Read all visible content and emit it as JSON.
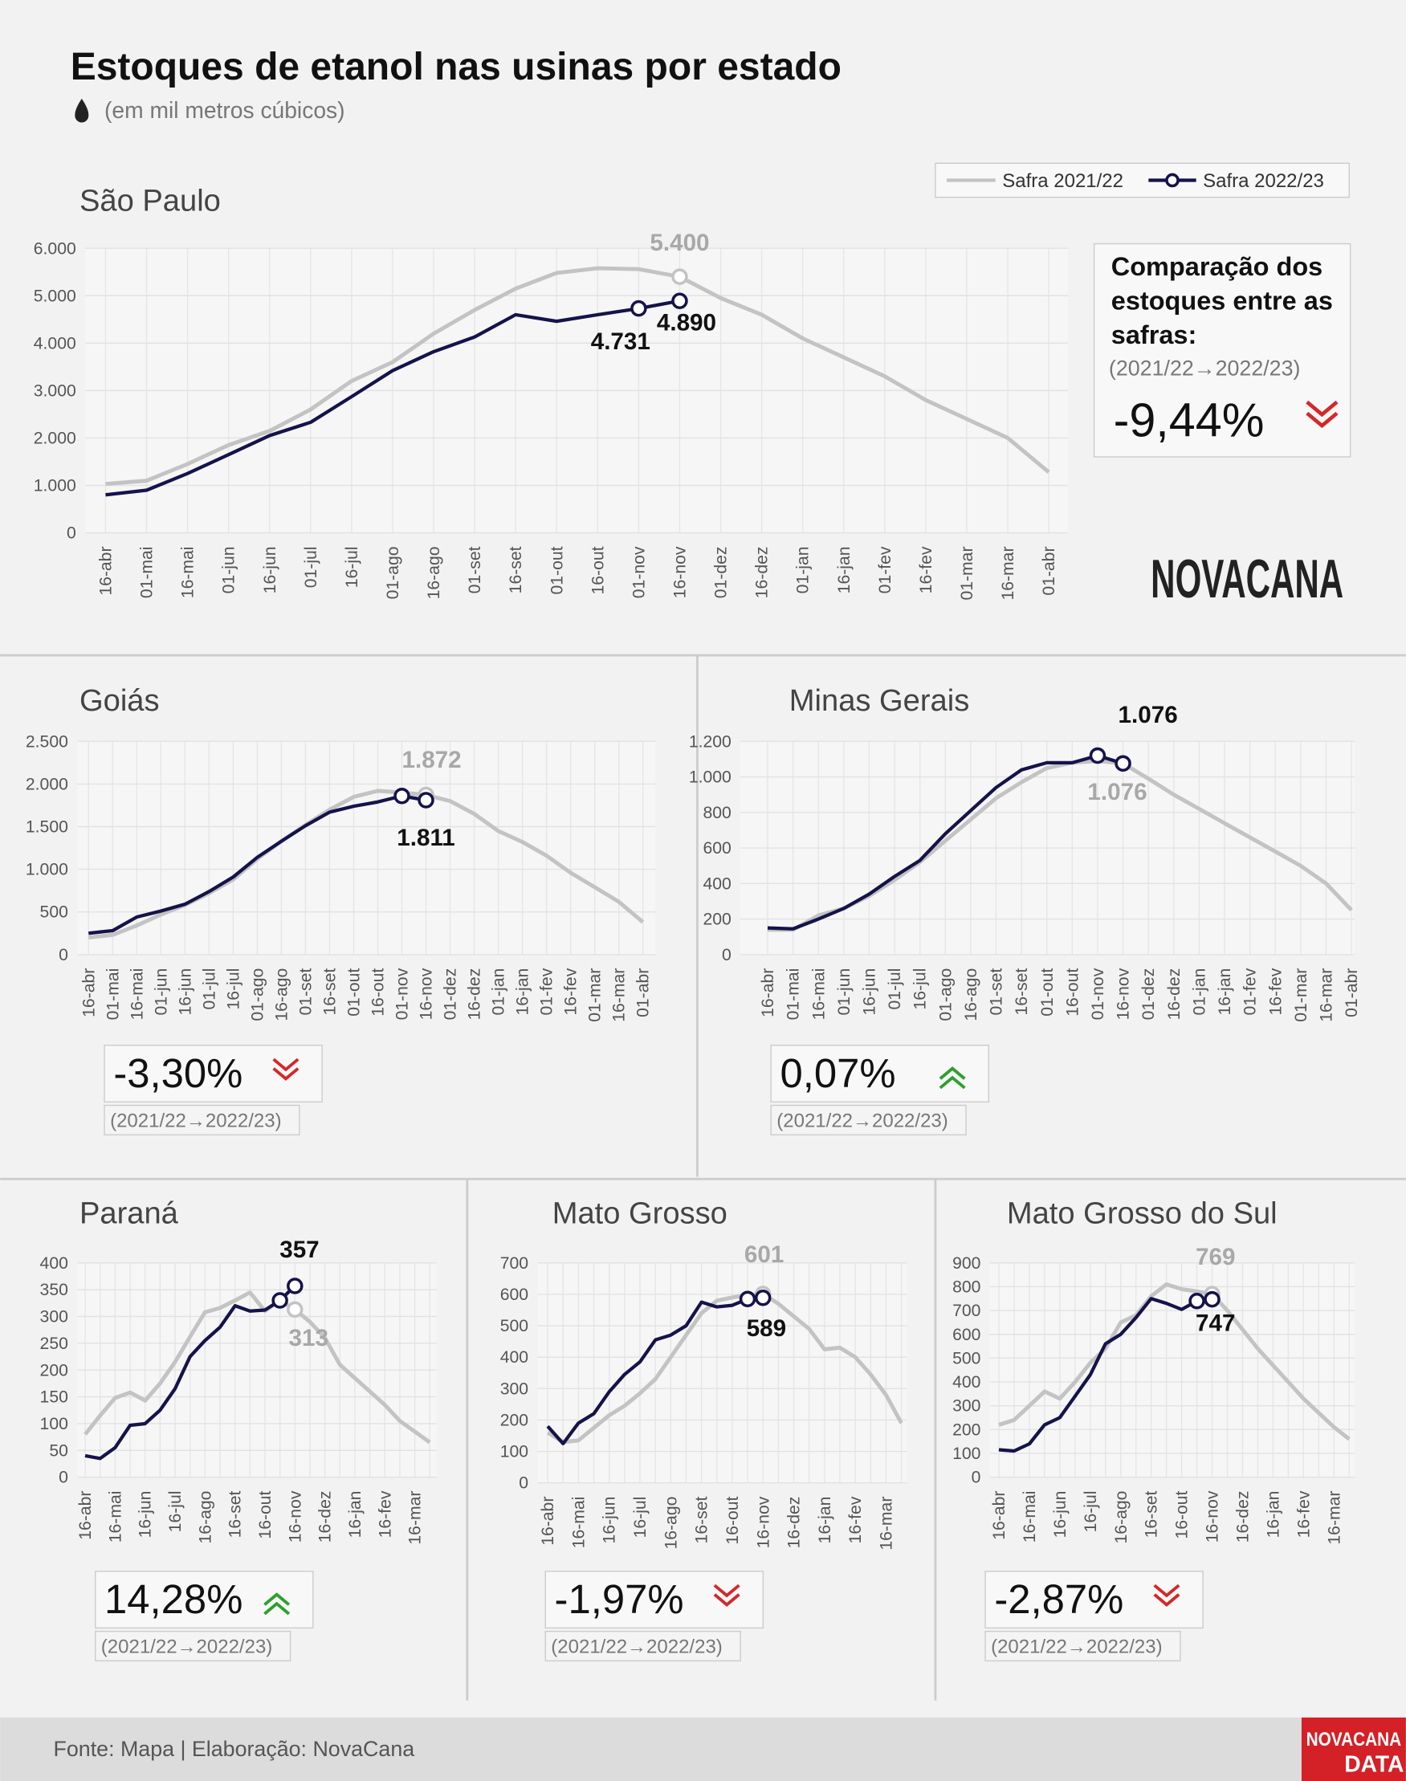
{
  "header": {
    "title": "Estoques de etanol nas usinas por estado",
    "subtitle": "(em mil metros cúbicos)"
  },
  "comparison_title": "Comparação dos estoques entre as safras:",
  "period_label": "(2021/22→2022/23)",
  "footer": {
    "source": "Fonte: Mapa | Elaboração: NovaCana",
    "logo": "NOVACANA",
    "data_logo": [
      "NOVACANA",
      "DATA"
    ]
  },
  "chart_data": [
    {
      "type": "line",
      "title": "São Paulo",
      "comparison": "-9,44%",
      "trend": "down",
      "categories": [
        "16-abr",
        "01-mai",
        "16-mai",
        "01-jun",
        "16-jun",
        "01-jul",
        "16-jul",
        "01-ago",
        "16-ago",
        "01-set",
        "16-set",
        "01-out",
        "16-out",
        "01-nov",
        "16-nov",
        "01-dez",
        "16-dez",
        "01-jan",
        "16-jan",
        "01-fev",
        "16-fev",
        "01-mar",
        "16-mar",
        "01-abr"
      ],
      "ylim": [
        0,
        6000
      ],
      "yticks": [
        0,
        {
          "value": 1000,
          "label": "1.000"
        },
        {
          "value": 2000,
          "label": "2.000"
        },
        {
          "value": 3000,
          "label": "3.000"
        },
        {
          "value": 4000,
          "label": "4.000"
        },
        {
          "value": 5000,
          "label": "5.000"
        },
        {
          "value": 6000,
          "label": "6.000"
        }
      ],
      "series": [
        {
          "name": "Safra 2021/22",
          "color": "#c3c3c3",
          "values": [
            1030,
            1100,
            1450,
            1850,
            2150,
            2600,
            3200,
            3600,
            4200,
            4700,
            5150,
            5480,
            5580,
            5560,
            5400,
            4950,
            4600,
            4100,
            3700,
            3300,
            2800,
            2400,
            2000,
            1280
          ],
          "value_labels": [
            null,
            null,
            null,
            null,
            null,
            null,
            null,
            null,
            null,
            null,
            null,
            null,
            null,
            null,
            "5.400",
            null,
            null,
            null,
            null,
            null,
            null,
            null,
            null,
            null
          ]
        },
        {
          "name": "Safra 2022/23",
          "color": "#14134a",
          "values": [
            800,
            900,
            1250,
            1650,
            2050,
            2330,
            2870,
            3420,
            3820,
            4130,
            4600,
            4460,
            4600,
            4731,
            4890,
            null,
            null,
            null,
            null,
            null,
            null,
            null,
            null,
            null
          ],
          "value_labels": [
            null,
            null,
            null,
            null,
            null,
            null,
            null,
            null,
            null,
            null,
            null,
            null,
            null,
            "4.731",
            "4.890",
            null,
            null,
            null,
            null,
            null,
            null,
            null,
            null,
            null
          ]
        }
      ]
    },
    {
      "type": "line",
      "title": "Goiás",
      "comparison": "-3,30%",
      "trend": "down",
      "categories": [
        "16-abr",
        "01-mai",
        "16-mai",
        "01-jun",
        "16-jun",
        "01-jul",
        "16-jul",
        "01-ago",
        "16-ago",
        "01-set",
        "16-set",
        "01-out",
        "16-out",
        "01-nov",
        "16-nov",
        "01-dez",
        "16-dez",
        "01-jan",
        "16-jan",
        "01-fev",
        "16-fev",
        "01-mar",
        "16-mar",
        "01-abr"
      ],
      "ylim": [
        0,
        2500
      ],
      "yticks": [
        0,
        500,
        {
          "value": 1000,
          "label": "1.000"
        },
        {
          "value": 1500,
          "label": "1.500"
        },
        {
          "value": 2000,
          "label": "2.000"
        },
        {
          "value": 2500,
          "label": "2.500"
        }
      ],
      "series": [
        {
          "name": "Safra 2021/22",
          "color": "#c3c3c3",
          "values": [
            200,
            230,
            340,
            470,
            580,
            720,
            880,
            1120,
            1330,
            1520,
            1700,
            1850,
            1920,
            1900,
            1872,
            1800,
            1650,
            1450,
            1320,
            1160,
            960,
            790,
            620,
            380
          ],
          "value_labels": [
            null,
            null,
            null,
            null,
            null,
            null,
            null,
            null,
            null,
            null,
            null,
            null,
            null,
            null,
            "1.872",
            null,
            null,
            null,
            null,
            null,
            null,
            null,
            null,
            null
          ]
        },
        {
          "name": "Safra 2022/23",
          "color": "#14134a",
          "values": [
            250,
            280,
            440,
            510,
            590,
            740,
            910,
            1140,
            1330,
            1510,
            1670,
            1740,
            1790,
            1860,
            1811,
            null,
            null,
            null,
            null,
            null,
            null,
            null,
            null,
            null
          ],
          "value_labels": [
            null,
            null,
            null,
            null,
            null,
            null,
            null,
            null,
            null,
            null,
            null,
            null,
            null,
            null,
            "1.811",
            null,
            null,
            null,
            null,
            null,
            null,
            null,
            null,
            null
          ]
        }
      ]
    },
    {
      "type": "line",
      "title": "Minas Gerais",
      "comparison": "0,07%",
      "trend": "up",
      "categories": [
        "16-abr",
        "01-mai",
        "16-mai",
        "01-jun",
        "16-jun",
        "01-jul",
        "16-jul",
        "01-ago",
        "16-ago",
        "01-set",
        "16-set",
        "01-out",
        "16-out",
        "01-nov",
        "16-nov",
        "01-dez",
        "16-dez",
        "01-jan",
        "16-jan",
        "01-fev",
        "16-fev",
        "01-mar",
        "16-mar",
        "01-abr"
      ],
      "ylim": [
        0,
        1200
      ],
      "yticks": [
        0,
        200,
        400,
        600,
        800,
        {
          "value": 1000,
          "label": "1.000"
        },
        {
          "value": 1200,
          "label": "1.200"
        }
      ],
      "series": [
        {
          "name": "Safra 2021/22",
          "color": "#c3c3c3",
          "values": [
            140,
            140,
            220,
            260,
            330,
            420,
            520,
            640,
            760,
            880,
            970,
            1050,
            1080,
            1090,
            1076,
            990,
            900,
            820,
            740,
            660,
            580,
            500,
            400,
            250
          ],
          "value_labels": [
            null,
            null,
            null,
            null,
            null,
            null,
            null,
            null,
            null,
            null,
            null,
            null,
            null,
            null,
            "1.076",
            null,
            null,
            null,
            null,
            null,
            null,
            null,
            null,
            null
          ]
        },
        {
          "name": "Safra 2022/23",
          "color": "#14134a",
          "values": [
            150,
            145,
            200,
            260,
            340,
            440,
            530,
            680,
            810,
            940,
            1040,
            1080,
            1080,
            1120,
            1076,
            null,
            null,
            null,
            null,
            null,
            null,
            null,
            null,
            null
          ],
          "value_labels": [
            null,
            null,
            null,
            null,
            null,
            null,
            null,
            null,
            null,
            null,
            null,
            null,
            null,
            null,
            "1.076",
            null,
            null,
            null,
            null,
            null,
            null,
            null,
            null,
            null
          ]
        }
      ]
    },
    {
      "type": "line",
      "title": "Paraná",
      "comparison": "14,28%",
      "trend": "up",
      "categories": [
        "16-abr",
        null,
        "16-mai",
        null,
        "16-jun",
        null,
        "16-jul",
        null,
        "16-ago",
        null,
        "16-set",
        null,
        "16-out",
        null,
        "16-nov",
        null,
        "16-dez",
        null,
        "16-jan",
        null,
        "16-fev",
        null,
        "16-mar",
        null
      ],
      "ylim": [
        0,
        400
      ],
      "yticks": [
        0,
        50,
        100,
        150,
        200,
        250,
        300,
        350,
        400
      ],
      "series": [
        {
          "name": "Safra 2021/22",
          "color": "#c3c3c3",
          "values": [
            80,
            115,
            148,
            158,
            143,
            175,
            215,
            262,
            308,
            316,
            330,
            345,
            310,
            330,
            313,
            290,
            260,
            210,
            185,
            160,
            135,
            105,
            85,
            65
          ],
          "value_labels": [
            null,
            null,
            null,
            null,
            null,
            null,
            null,
            null,
            null,
            null,
            null,
            null,
            null,
            null,
            "313",
            null,
            null,
            null,
            null,
            null,
            null,
            null,
            null,
            null
          ]
        },
        {
          "name": "Safra 2022/23",
          "color": "#14134a",
          "values": [
            40,
            35,
            55,
            97,
            100,
            125,
            165,
            225,
            255,
            280,
            320,
            310,
            312,
            330,
            357,
            null,
            null,
            null,
            null,
            null,
            null,
            null,
            null,
            null
          ],
          "value_labels": [
            null,
            null,
            null,
            null,
            null,
            null,
            null,
            null,
            null,
            null,
            null,
            null,
            null,
            null,
            "357",
            null,
            null,
            null,
            null,
            null,
            null,
            null,
            null,
            null
          ]
        }
      ]
    },
    {
      "type": "line",
      "title": "Mato Grosso",
      "comparison": "-1,97%",
      "trend": "down",
      "categories": [
        "16-abr",
        null,
        "16-mai",
        null,
        "16-jun",
        null,
        "16-jul",
        null,
        "16-ago",
        null,
        "16-set",
        null,
        "16-out",
        null,
        "16-nov",
        null,
        "16-dez",
        null,
        "16-jan",
        null,
        "16-fev",
        null,
        "16-mar",
        null
      ],
      "ylim": [
        0,
        700
      ],
      "yticks": [
        0,
        100,
        200,
        300,
        400,
        500,
        600,
        700
      ],
      "series": [
        {
          "name": "Safra 2021/22",
          "color": "#c3c3c3",
          "values": [
            160,
            130,
            135,
            175,
            215,
            245,
            285,
            330,
            400,
            470,
            540,
            580,
            590,
            598,
            601,
            570,
            530,
            490,
            425,
            430,
            400,
            345,
            280,
            190
          ],
          "value_labels": [
            null,
            null,
            null,
            null,
            null,
            null,
            null,
            null,
            null,
            null,
            null,
            null,
            null,
            null,
            "601",
            null,
            null,
            null,
            null,
            null,
            null,
            null,
            null,
            null
          ]
        },
        {
          "name": "Safra 2022/23",
          "color": "#14134a",
          "values": [
            180,
            125,
            190,
            220,
            290,
            345,
            385,
            455,
            470,
            500,
            575,
            560,
            565,
            585,
            589,
            null,
            null,
            null,
            null,
            null,
            null,
            null,
            null,
            null
          ],
          "value_labels": [
            null,
            null,
            null,
            null,
            null,
            null,
            null,
            null,
            null,
            null,
            null,
            null,
            null,
            null,
            "589",
            null,
            null,
            null,
            null,
            null,
            null,
            null,
            null,
            null
          ]
        }
      ]
    },
    {
      "type": "line",
      "title": "Mato Grosso do Sul",
      "comparison": "-2,87%",
      "trend": "down",
      "categories": [
        "16-abr",
        null,
        "16-mai",
        null,
        "16-jun",
        null,
        "16-jul",
        null,
        "16-ago",
        null,
        "16-set",
        null,
        "16-out",
        null,
        "16-nov",
        null,
        "16-dez",
        null,
        "16-jan",
        null,
        "16-fev",
        null,
        "16-mar",
        null
      ],
      "ylim": [
        0,
        900
      ],
      "yticks": [
        0,
        100,
        200,
        300,
        400,
        500,
        600,
        700,
        800,
        900
      ],
      "series": [
        {
          "name": "Safra 2021/22",
          "color": "#c3c3c3",
          "values": [
            220,
            240,
            300,
            360,
            330,
            400,
            480,
            540,
            650,
            680,
            760,
            810,
            790,
            780,
            769,
            700,
            620,
            540,
            470,
            400,
            330,
            270,
            210,
            160
          ],
          "value_labels": [
            null,
            null,
            null,
            null,
            null,
            null,
            null,
            null,
            null,
            null,
            null,
            null,
            null,
            null,
            "769",
            null,
            null,
            null,
            null,
            null,
            null,
            null,
            null,
            null
          ]
        },
        {
          "name": "Safra 2022/23",
          "color": "#14134a",
          "values": [
            115,
            110,
            140,
            220,
            250,
            340,
            430,
            560,
            600,
            670,
            750,
            730,
            705,
            740,
            747,
            null,
            null,
            null,
            null,
            null,
            null,
            null,
            null,
            null
          ],
          "value_labels": [
            null,
            null,
            null,
            null,
            null,
            null,
            null,
            null,
            null,
            null,
            null,
            null,
            null,
            null,
            "747",
            null,
            null,
            null,
            null,
            null,
            null,
            null,
            null,
            null
          ]
        }
      ]
    }
  ]
}
